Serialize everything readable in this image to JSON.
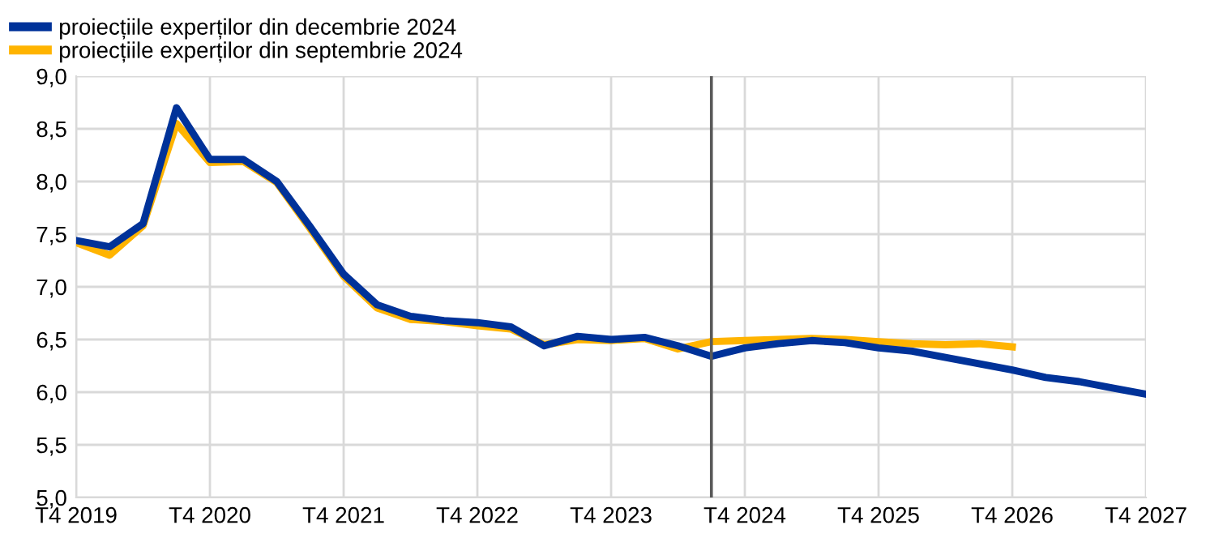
{
  "chart_data": {
    "type": "line",
    "x": [
      "2019-10",
      "2020-01",
      "2020-04",
      "2020-07",
      "2020-10",
      "2021-01",
      "2021-04",
      "2021-07",
      "2021-10",
      "2022-01",
      "2022-04",
      "2022-07",
      "2022-10",
      "2023-01",
      "2023-04",
      "2023-07",
      "2023-10",
      "2024-01",
      "2024-04",
      "2024-07",
      "2024-10",
      "2025-01",
      "2025-04",
      "2025-07",
      "2025-10",
      "2026-01",
      "2026-04",
      "2026-07",
      "2026-10",
      "2027-01",
      "2027-04",
      "2027-07",
      "2027-10"
    ],
    "series": [
      {
        "name": "proiecțiile experților din decembrie 2024",
        "color": "#003299",
        "values": [
          7.44,
          7.38,
          7.6,
          8.7,
          8.21,
          8.21,
          8.0,
          7.57,
          7.12,
          6.83,
          6.72,
          6.68,
          6.66,
          6.62,
          6.44,
          6.53,
          6.5,
          6.52,
          6.44,
          6.34,
          6.42,
          6.46,
          6.49,
          6.47,
          6.42,
          6.39,
          6.33,
          6.27,
          6.21,
          6.14,
          6.1,
          6.04,
          5.98
        ]
      },
      {
        "name": "proiecțiile experților din septembrie 2024",
        "color": "#ffb400",
        "values": [
          7.42,
          7.3,
          7.58,
          8.55,
          8.18,
          8.19,
          7.99,
          7.55,
          7.1,
          6.8,
          6.69,
          6.67,
          6.63,
          6.6,
          6.45,
          6.5,
          6.49,
          6.51,
          6.41,
          6.48,
          6.49,
          6.5,
          6.51,
          6.5,
          6.48,
          6.46,
          6.45,
          6.46,
          6.43,
          null,
          null,
          null,
          null
        ]
      }
    ],
    "ylim": [
      5.0,
      9.0
    ],
    "yticks": [
      {
        "value": 5.0,
        "label": "5,0"
      },
      {
        "value": 5.5,
        "label": "5,5"
      },
      {
        "value": 6.0,
        "label": "6,0"
      },
      {
        "value": 6.5,
        "label": "6,5"
      },
      {
        "value": 7.0,
        "label": "7,0"
      },
      {
        "value": 7.5,
        "label": "7,5"
      },
      {
        "value": 8.0,
        "label": "8,0"
      },
      {
        "value": 8.5,
        "label": "8,5"
      },
      {
        "value": 9.0,
        "label": "9,0"
      }
    ],
    "xlim": [
      "2019-10",
      "2027-10"
    ],
    "xticks": [
      {
        "value": "2019-10",
        "label": "T4 2019"
      },
      {
        "value": "2020-10",
        "label": "T4 2020"
      },
      {
        "value": "2021-10",
        "label": "T4 2021"
      },
      {
        "value": "2022-10",
        "label": "T4 2022"
      },
      {
        "value": "2023-10",
        "label": "T4 2023"
      },
      {
        "value": "2024-10",
        "label": "T4 2024"
      },
      {
        "value": "2025-10",
        "label": "T4 2025"
      },
      {
        "value": "2026-10",
        "label": "T4 2026"
      },
      {
        "value": "2027-10",
        "label": "T4 2027"
      }
    ],
    "ref_lines": [
      {
        "axis": "x",
        "value": "2024-07",
        "color": "#595959"
      }
    ],
    "grid": true,
    "legend": "top left",
    "marker": "none",
    "line_style": "solid"
  }
}
